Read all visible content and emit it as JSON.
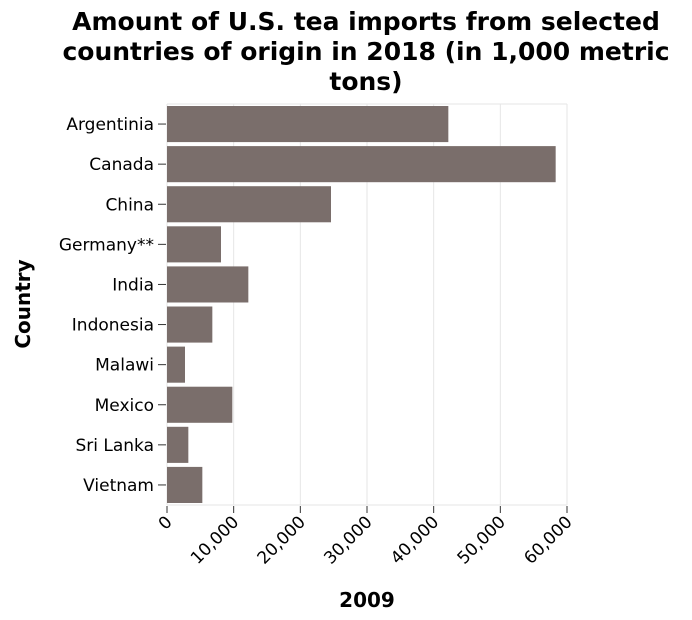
{
  "chart_data": {
    "type": "bar",
    "orientation": "horizontal",
    "title_lines": [
      "Amount of U.S. tea imports from selected",
      "countries of origin in 2018 (in 1,000 metric",
      "tons)"
    ],
    "xlabel": "2009",
    "ylabel": "Country",
    "categories": [
      "Argentinia",
      "Canada",
      "China",
      "Germany**",
      "India",
      "Indonesia",
      "Malawi",
      "Mexico",
      "Sri Lanka",
      "Vietnam"
    ],
    "values": [
      42200,
      58300,
      24600,
      8100,
      12200,
      6800,
      2700,
      9800,
      3200,
      5300
    ],
    "xlim": [
      0,
      60000
    ],
    "xticks": [
      0,
      10000,
      20000,
      30000,
      40000,
      50000,
      60000
    ],
    "xtick_labels": [
      "0",
      "10,000",
      "20,000",
      "30,000",
      "40,000",
      "50,000",
      "60,000"
    ],
    "bar_color": "#7a6e6b",
    "grid": true
  }
}
